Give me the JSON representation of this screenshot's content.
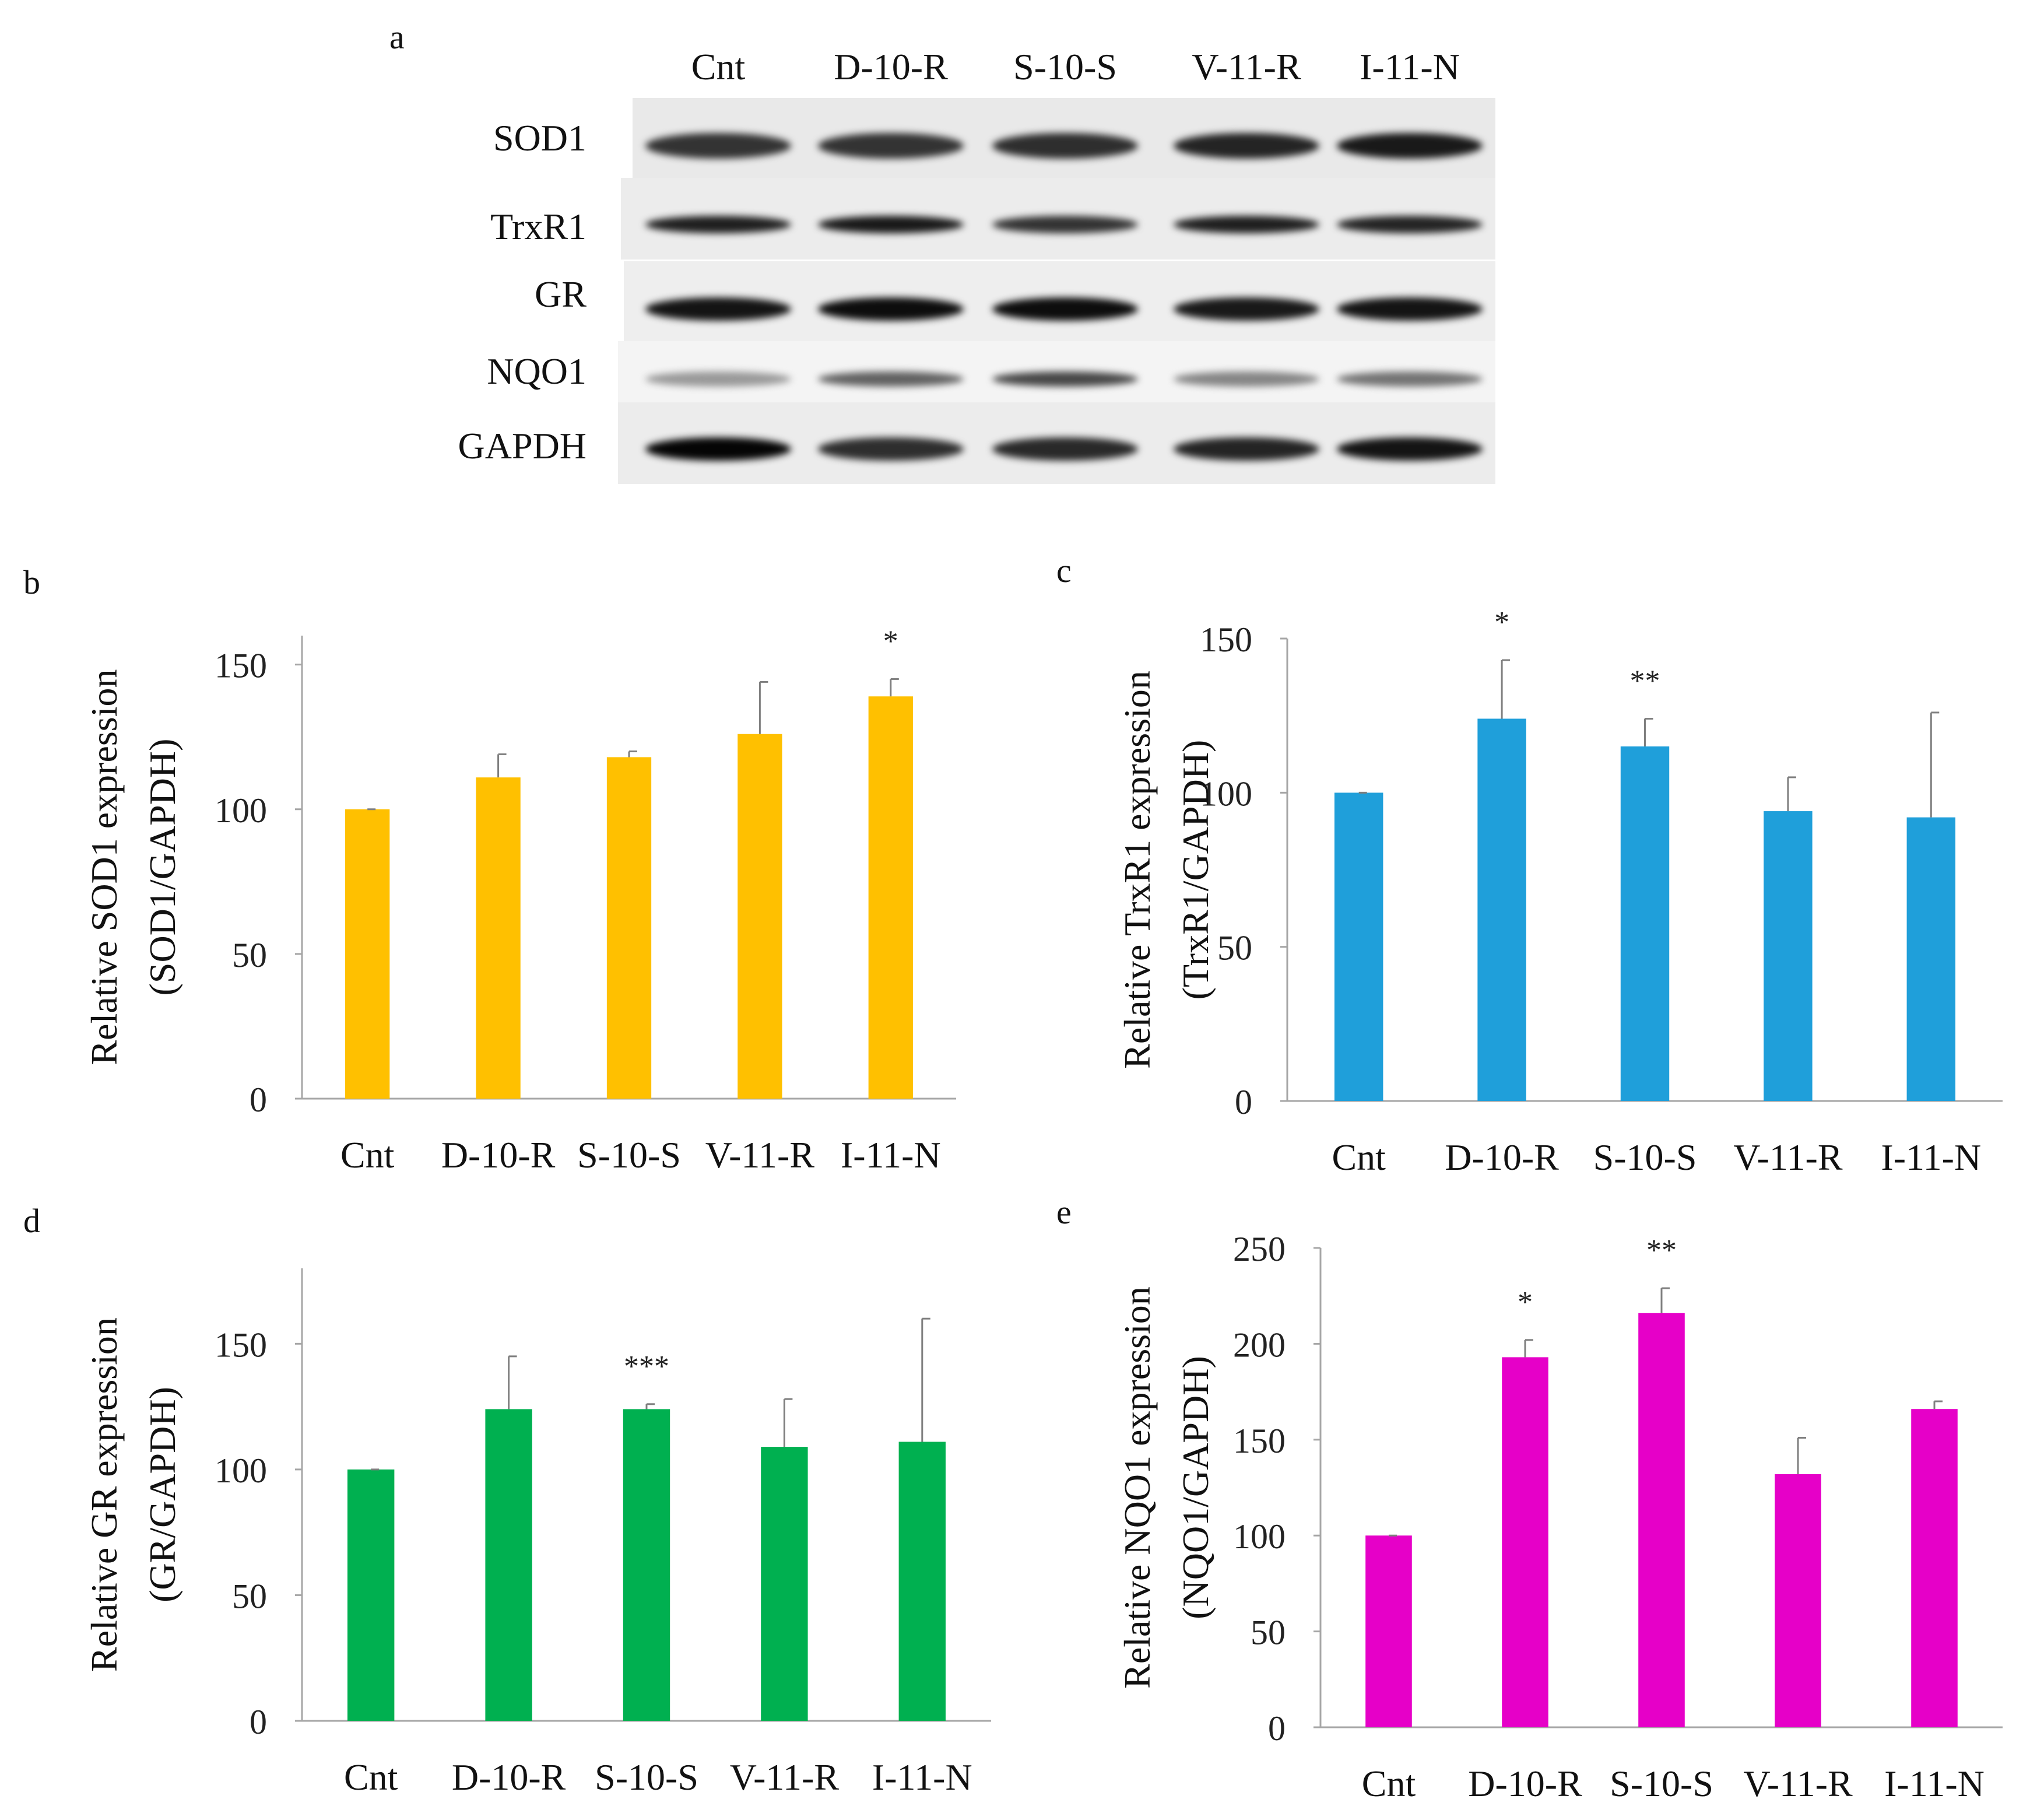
{
  "panels": {
    "a": "a",
    "b": "b",
    "c": "c",
    "d": "d",
    "e": "e"
  },
  "blot": {
    "lanes": [
      "Cnt",
      "D-10-R",
      "S-10-S",
      "V-11-R",
      "I-11-N"
    ],
    "bands": [
      {
        "name": "SOD1",
        "intensity": [
          0.8,
          0.8,
          0.82,
          0.86,
          0.9
        ]
      },
      {
        "name": "TrxR1",
        "intensity": [
          0.88,
          0.9,
          0.8,
          0.88,
          0.86
        ]
      },
      {
        "name": "GR",
        "intensity": [
          0.92,
          0.95,
          0.95,
          0.9,
          0.92
        ]
      },
      {
        "name": "NQO1",
        "intensity": [
          0.4,
          0.62,
          0.72,
          0.48,
          0.55
        ]
      },
      {
        "name": "GAPDH",
        "intensity": [
          0.98,
          0.82,
          0.84,
          0.86,
          0.92
        ]
      }
    ]
  },
  "chart_data": [
    {
      "panel": "b",
      "type": "bar",
      "color": "#FFC000",
      "categories": [
        "Cnt",
        "D-10-R",
        "S-10-S",
        "V-11-R",
        "I-11-N"
      ],
      "values": [
        100,
        111,
        118,
        126,
        139
      ],
      "errors": [
        0.5,
        8,
        2,
        18,
        6
      ],
      "annotations": [
        "",
        "",
        "",
        "",
        "*"
      ],
      "ylabel1": "Relative SOD1 expression",
      "ylabel2": "(SOD1/GAPDH)",
      "ylim": [
        0,
        160
      ],
      "yticks": [
        0,
        50,
        100,
        150
      ]
    },
    {
      "panel": "c",
      "type": "bar",
      "color": "#1F9FDA",
      "categories": [
        "Cnt",
        "D-10-R",
        "S-10-S",
        "V-11-R",
        "I-11-N"
      ],
      "values": [
        100,
        124,
        115,
        94,
        92
      ],
      "errors": [
        0.5,
        19,
        9,
        11,
        34
      ],
      "annotations": [
        "",
        "*",
        "**",
        "",
        ""
      ],
      "ylabel1": "Relative TrxR1 expression",
      "ylabel2": "(TrxR1/GAPDH)",
      "ylim": [
        0,
        150
      ],
      "yticks": [
        0,
        50,
        100,
        150
      ]
    },
    {
      "panel": "d",
      "type": "bar",
      "color": "#00B050",
      "categories": [
        "Cnt",
        "D-10-R",
        "S-10-S",
        "V-11-R",
        "I-11-N"
      ],
      "values": [
        100,
        124,
        124,
        109,
        111
      ],
      "errors": [
        0.5,
        21,
        2,
        19,
        49
      ],
      "annotations": [
        "",
        "",
        "***",
        "",
        ""
      ],
      "ylabel1": "Relative GR expression",
      "ylabel2": "(GR/GAPDH)",
      "ylim": [
        0,
        180
      ],
      "yticks": [
        0,
        50,
        100,
        150
      ]
    },
    {
      "panel": "e",
      "type": "bar",
      "color": "#E600C8",
      "categories": [
        "Cnt",
        "D-10-R",
        "S-10-S",
        "V-11-R",
        "I-11-N"
      ],
      "values": [
        100,
        193,
        216,
        132,
        166
      ],
      "errors": [
        0.5,
        9,
        13,
        19,
        4
      ],
      "annotations": [
        "",
        "*",
        "**",
        "",
        ""
      ],
      "ylabel1": "Relative NQO1 expression",
      "ylabel2": "(NQO1/GAPDH)",
      "ylim": [
        0,
        250
      ],
      "yticks": [
        0,
        50,
        100,
        150,
        200,
        250
      ]
    }
  ]
}
